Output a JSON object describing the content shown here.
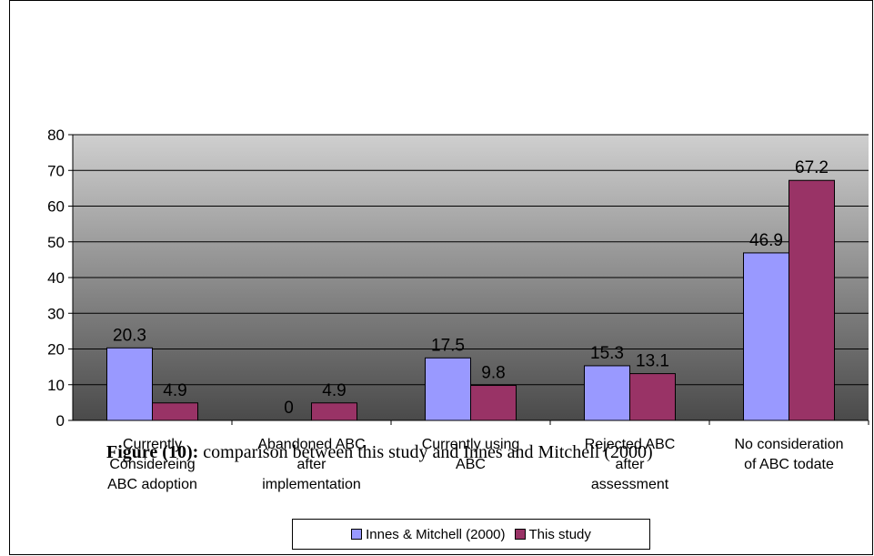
{
  "colors": {
    "series1": "#9999ff",
    "series2": "#993366",
    "plot_top": "#cfcfcf",
    "plot_bottom": "#4a4a4a"
  },
  "caption": {
    "label": "Figure (10):",
    "text": " comparison between this study and Innes and Mitchell (2000)"
  },
  "chart_data": {
    "type": "bar",
    "categories": [
      [
        "Currently",
        "Considereing",
        "ABC adoption"
      ],
      [
        "Abandoned ABC",
        "after",
        "implementation"
      ],
      [
        "Currently using",
        "ABC"
      ],
      [
        "Rejected ABC",
        "after",
        "assessment"
      ],
      [
        "No consideration",
        "of ABC todate"
      ]
    ],
    "series": [
      {
        "name": "Innes & Mitchell (2000)",
        "values": [
          20.3,
          0,
          17.5,
          15.3,
          46.9
        ]
      },
      {
        "name": "This study",
        "values": [
          4.9,
          4.9,
          9.8,
          13.1,
          67.2
        ]
      }
    ],
    "data_labels": [
      [
        "20.3",
        "0",
        "17.5",
        "15.3",
        "46.9"
      ],
      [
        "4.9",
        "4.9",
        "9.8",
        "13.1",
        "67.2"
      ]
    ],
    "y_ticks": [
      "0",
      "10",
      "20",
      "30",
      "40",
      "50",
      "60",
      "70",
      "80"
    ],
    "ylim": [
      0,
      80
    ],
    "grid": true,
    "legend_position": "bottom"
  }
}
